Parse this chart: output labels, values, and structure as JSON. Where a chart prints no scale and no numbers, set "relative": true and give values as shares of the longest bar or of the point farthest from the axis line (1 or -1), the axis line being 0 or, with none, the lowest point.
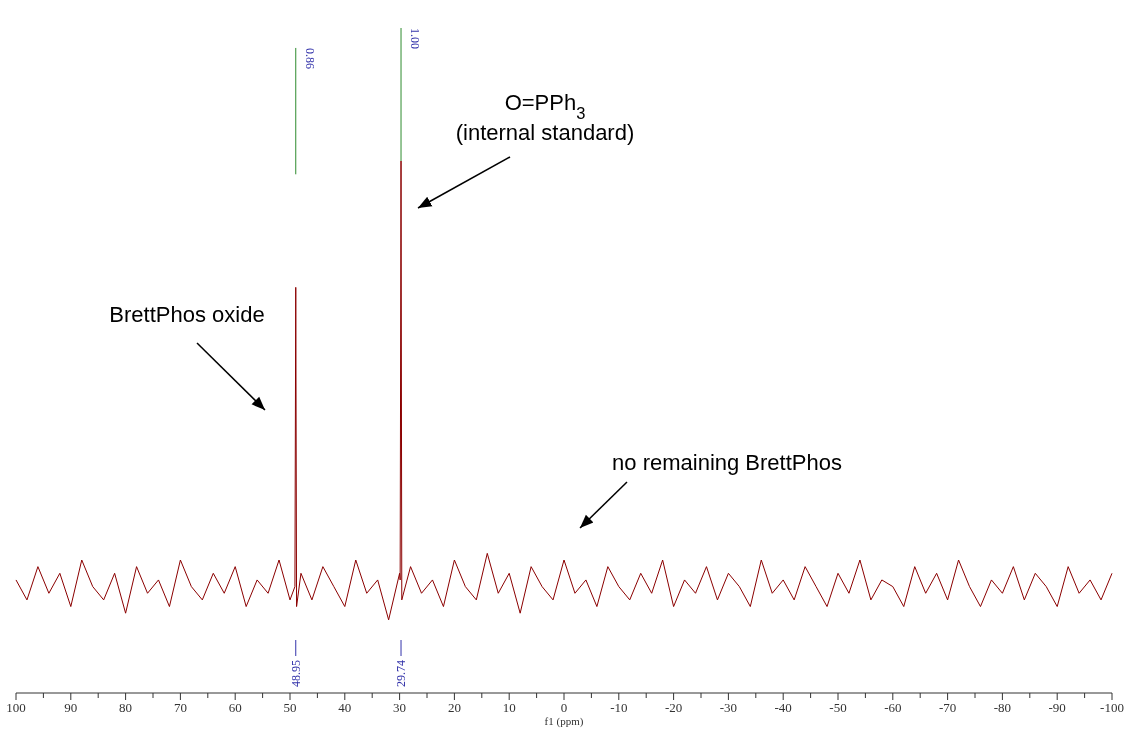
{
  "chart_data": {
    "type": "line",
    "relative": true,
    "xlabel": "f1 (ppm)",
    "xlim": [
      100,
      -100
    ],
    "xticks": [
      100,
      {
        "value": 95,
        "label": null
      },
      90,
      {
        "value": 85,
        "label": null
      },
      80,
      {
        "value": 75,
        "label": null
      },
      70,
      {
        "value": 65,
        "label": null
      },
      60,
      {
        "value": 55,
        "label": null
      },
      50,
      {
        "value": 45,
        "label": null
      },
      40,
      {
        "value": 35,
        "label": null
      },
      30,
      {
        "value": 25,
        "label": null
      },
      20,
      {
        "value": 15,
        "label": null
      },
      10,
      {
        "value": 5,
        "label": null
      },
      0,
      {
        "value": -5,
        "label": null
      },
      -10,
      {
        "value": -15,
        "label": null
      },
      -20,
      {
        "value": -25,
        "label": null
      },
      -30,
      {
        "value": -35,
        "label": null
      },
      -40,
      {
        "value": -45,
        "label": null
      },
      -50,
      {
        "value": -55,
        "label": null
      },
      -60,
      {
        "value": -65,
        "label": null
      },
      -70,
      {
        "value": -75,
        "label": null
      },
      -80,
      {
        "value": -85,
        "label": null
      },
      -90,
      {
        "value": -95,
        "label": null
      },
      -100
    ],
    "series": [
      {
        "color": "#8b0000",
        "x": [
          100,
          98,
          96,
          94,
          92,
          90,
          88,
          86,
          84,
          82,
          80,
          78,
          76,
          74,
          72,
          70,
          68,
          66,
          64,
          62,
          60,
          58,
          56,
          54,
          52,
          50,
          49.1,
          48.95,
          48.8,
          48,
          46,
          44,
          42,
          40,
          38,
          36,
          34,
          32,
          30,
          29.9,
          29.74,
          29.6,
          28,
          26,
          24,
          22,
          20,
          18,
          16,
          14,
          12,
          10,
          8,
          6,
          4,
          2,
          0,
          -2,
          -4,
          -6,
          -8,
          -10,
          -12,
          -14,
          -16,
          -18,
          -20,
          -22,
          -24,
          -26,
          -28,
          -30,
          -32,
          -34,
          -36,
          -38,
          -40,
          -42,
          -44,
          -46,
          -48,
          -50,
          -52,
          -54,
          -56,
          -58,
          -60,
          -62,
          -64,
          -66,
          -68,
          -70,
          -72,
          -74,
          -76,
          -78,
          -80,
          -82,
          -84,
          -86,
          -88,
          -90,
          -92,
          -94,
          -96,
          -98,
          -100
        ],
        "values": [
          0.17,
          0.14,
          0.19,
          0.15,
          0.18,
          0.13,
          0.2,
          0.16,
          0.14,
          0.18,
          0.12,
          0.19,
          0.15,
          0.17,
          0.13,
          0.2,
          0.16,
          0.14,
          0.18,
          0.15,
          0.19,
          0.13,
          0.17,
          0.15,
          0.2,
          0.14,
          0.16,
          0.61,
          0.13,
          0.18,
          0.14,
          0.19,
          0.16,
          0.13,
          0.2,
          0.15,
          0.17,
          0.11,
          0.18,
          0.17,
          0.8,
          0.14,
          0.19,
          0.15,
          0.17,
          0.13,
          0.2,
          0.16,
          0.14,
          0.21,
          0.15,
          0.18,
          0.12,
          0.19,
          0.16,
          0.14,
          0.2,
          0.15,
          0.17,
          0.13,
          0.19,
          0.16,
          0.14,
          0.18,
          0.15,
          0.2,
          0.13,
          0.17,
          0.15,
          0.19,
          0.14,
          0.18,
          0.16,
          0.13,
          0.2,
          0.15,
          0.17,
          0.14,
          0.19,
          0.16,
          0.13,
          0.18,
          0.15,
          0.2,
          0.14,
          0.17,
          0.16,
          0.13,
          0.19,
          0.15,
          0.18,
          0.14,
          0.2,
          0.16,
          0.13,
          0.17,
          0.15,
          0.19,
          0.14,
          0.18,
          0.16,
          0.13,
          0.19,
          0.15,
          0.17,
          0.14,
          0.18
        ]
      },
      {
        "color": "#2e8b2e",
        "x": [
          48.95,
          48.95
        ],
        "values": [
          0.78,
          0.97
        ]
      },
      {
        "color": "#2e8b2e",
        "x": [
          29.74,
          29.74
        ],
        "values": [
          0.8,
          1.0
        ]
      }
    ],
    "annotations": [
      "BrettPhos oxide",
      "O=PPh$_{3}$\n(internal standard)",
      "no remaining BrettPhos",
      "0.86",
      "1.00",
      "48.95",
      "29.74"
    ]
  }
}
